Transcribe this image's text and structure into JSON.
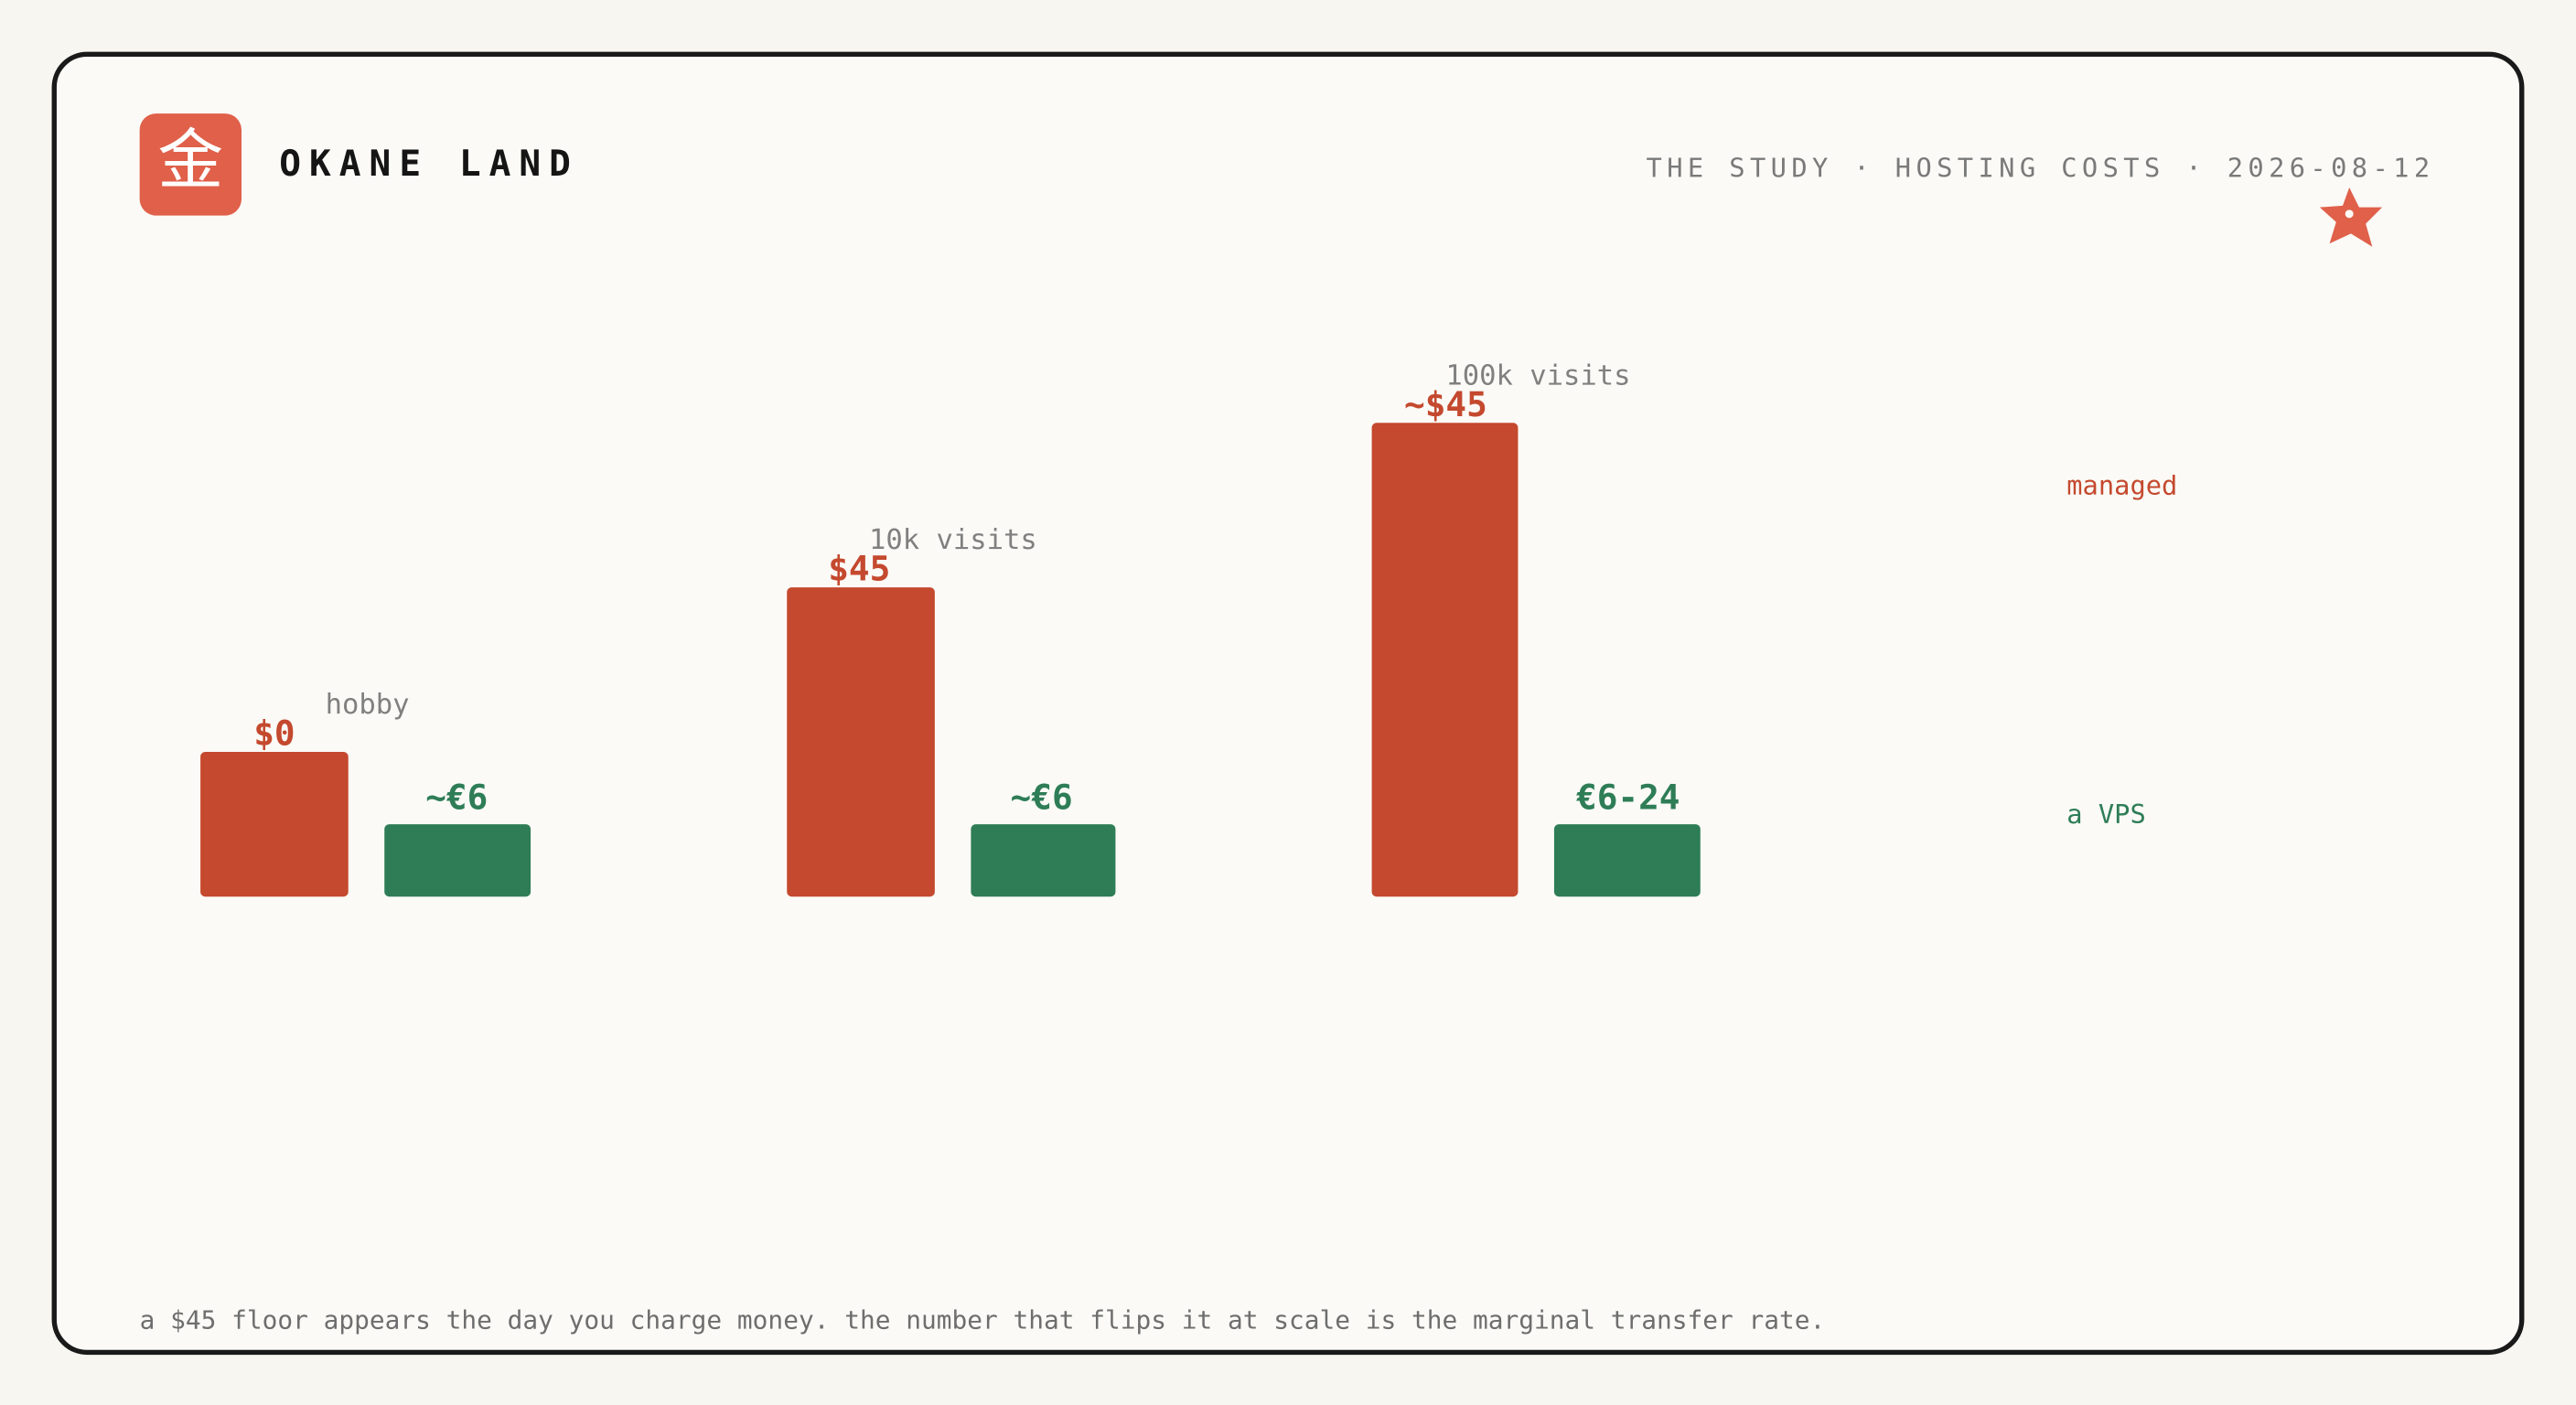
{
  "header": {
    "logo_glyph": "金",
    "brand": "OKANE LAND",
    "meta": "THE STUDY · HOSTING COSTS · 2026-08-12"
  },
  "groups": [
    {
      "label": "hobby",
      "managed": "$0",
      "vps": "~€6"
    },
    {
      "label": "10k visits",
      "managed": "$45",
      "vps": "~€6"
    },
    {
      "label": "100k visits",
      "managed": "~$45",
      "vps": "€6-24"
    }
  ],
  "legend": {
    "managed": "managed",
    "vps": "a VPS"
  },
  "footnote": "a $45 floor appears the day you charge money. the number that flips it at scale is the marginal transfer rate."
}
